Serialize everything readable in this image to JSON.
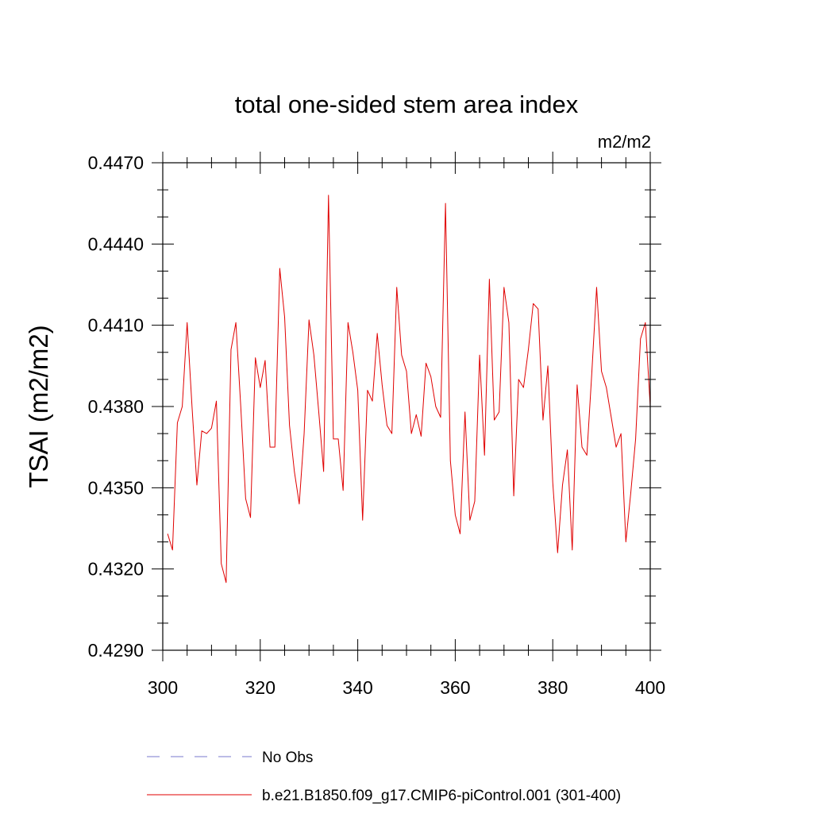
{
  "chart_data": {
    "type": "line",
    "title": "total one-sided stem area index",
    "units": "m2/m2",
    "ylabel": "TSAI  (m2/m2)",
    "xlabel": "",
    "xlim": [
      300,
      400
    ],
    "ylim": [
      0.429,
      0.447
    ],
    "x_ticks": [
      300,
      320,
      340,
      360,
      380,
      400
    ],
    "x_tick_labels": [
      "300",
      "320",
      "340",
      "360",
      "380",
      "400"
    ],
    "y_ticks": [
      0.429,
      0.432,
      0.435,
      0.438,
      0.441,
      0.444,
      0.447
    ],
    "y_tick_labels": [
      "0.4290",
      "0.4320",
      "0.4350",
      "0.4380",
      "0.4410",
      "0.4440",
      "0.4470"
    ],
    "grid": false,
    "legend": {
      "placement": "bottom",
      "entries": [
        {
          "label": "No Obs",
          "color": "#7a7acc",
          "style": "dashed"
        },
        {
          "label": "b.e21.B1850.f09_g17.CMIP6-piControl.001 (301-400)",
          "color": "#e00000",
          "style": "solid"
        }
      ]
    },
    "series": [
      {
        "name": "b.e21.B1850.f09_g17.CMIP6-piControl.001 (301-400)",
        "color": "#e00000",
        "x": [
          301,
          302,
          303,
          304,
          305,
          306,
          307,
          308,
          309,
          310,
          311,
          312,
          313,
          314,
          315,
          316,
          317,
          318,
          319,
          320,
          321,
          322,
          323,
          324,
          325,
          326,
          327,
          328,
          329,
          330,
          331,
          332,
          333,
          334,
          335,
          336,
          337,
          338,
          339,
          340,
          341,
          342,
          343,
          344,
          345,
          346,
          347,
          348,
          349,
          350,
          351,
          352,
          353,
          354,
          355,
          356,
          357,
          358,
          359,
          360,
          361,
          362,
          363,
          364,
          365,
          366,
          367,
          368,
          369,
          370,
          371,
          372,
          373,
          374,
          375,
          376,
          377,
          378,
          379,
          380,
          381,
          382,
          383,
          384,
          385,
          386,
          387,
          388,
          389,
          390,
          391,
          392,
          393,
          394,
          395,
          396,
          397,
          398,
          399,
          400
        ],
        "values": [
          0.4333,
          0.4327,
          0.4374,
          0.438,
          0.4411,
          0.438,
          0.4351,
          0.4371,
          0.437,
          0.4372,
          0.4382,
          0.4322,
          0.4315,
          0.4401,
          0.4411,
          0.438,
          0.4346,
          0.4339,
          0.4398,
          0.4387,
          0.4397,
          0.4365,
          0.4365,
          0.4431,
          0.4413,
          0.4373,
          0.4356,
          0.4344,
          0.437,
          0.4412,
          0.4399,
          0.4378,
          0.4356,
          0.4458,
          0.4368,
          0.4368,
          0.4349,
          0.4411,
          0.44,
          0.4386,
          0.4338,
          0.4386,
          0.4382,
          0.4407,
          0.4388,
          0.4373,
          0.437,
          0.4424,
          0.4399,
          0.4393,
          0.437,
          0.4377,
          0.4369,
          0.4396,
          0.4391,
          0.438,
          0.4376,
          0.4455,
          0.436,
          0.434,
          0.4333,
          0.4378,
          0.4338,
          0.4345,
          0.4399,
          0.4362,
          0.4427,
          0.4375,
          0.4378,
          0.4424,
          0.4411,
          0.4347,
          0.439,
          0.4387,
          0.4401,
          0.4418,
          0.4416,
          0.4375,
          0.4395,
          0.4352,
          0.4326,
          0.4351,
          0.4364,
          0.4327,
          0.4388,
          0.4365,
          0.4362,
          0.4392,
          0.4424,
          0.4393,
          0.4387,
          0.4376,
          0.4365,
          0.437,
          0.433,
          0.4348,
          0.4368,
          0.4405,
          0.4411,
          0.438
        ]
      }
    ]
  }
}
